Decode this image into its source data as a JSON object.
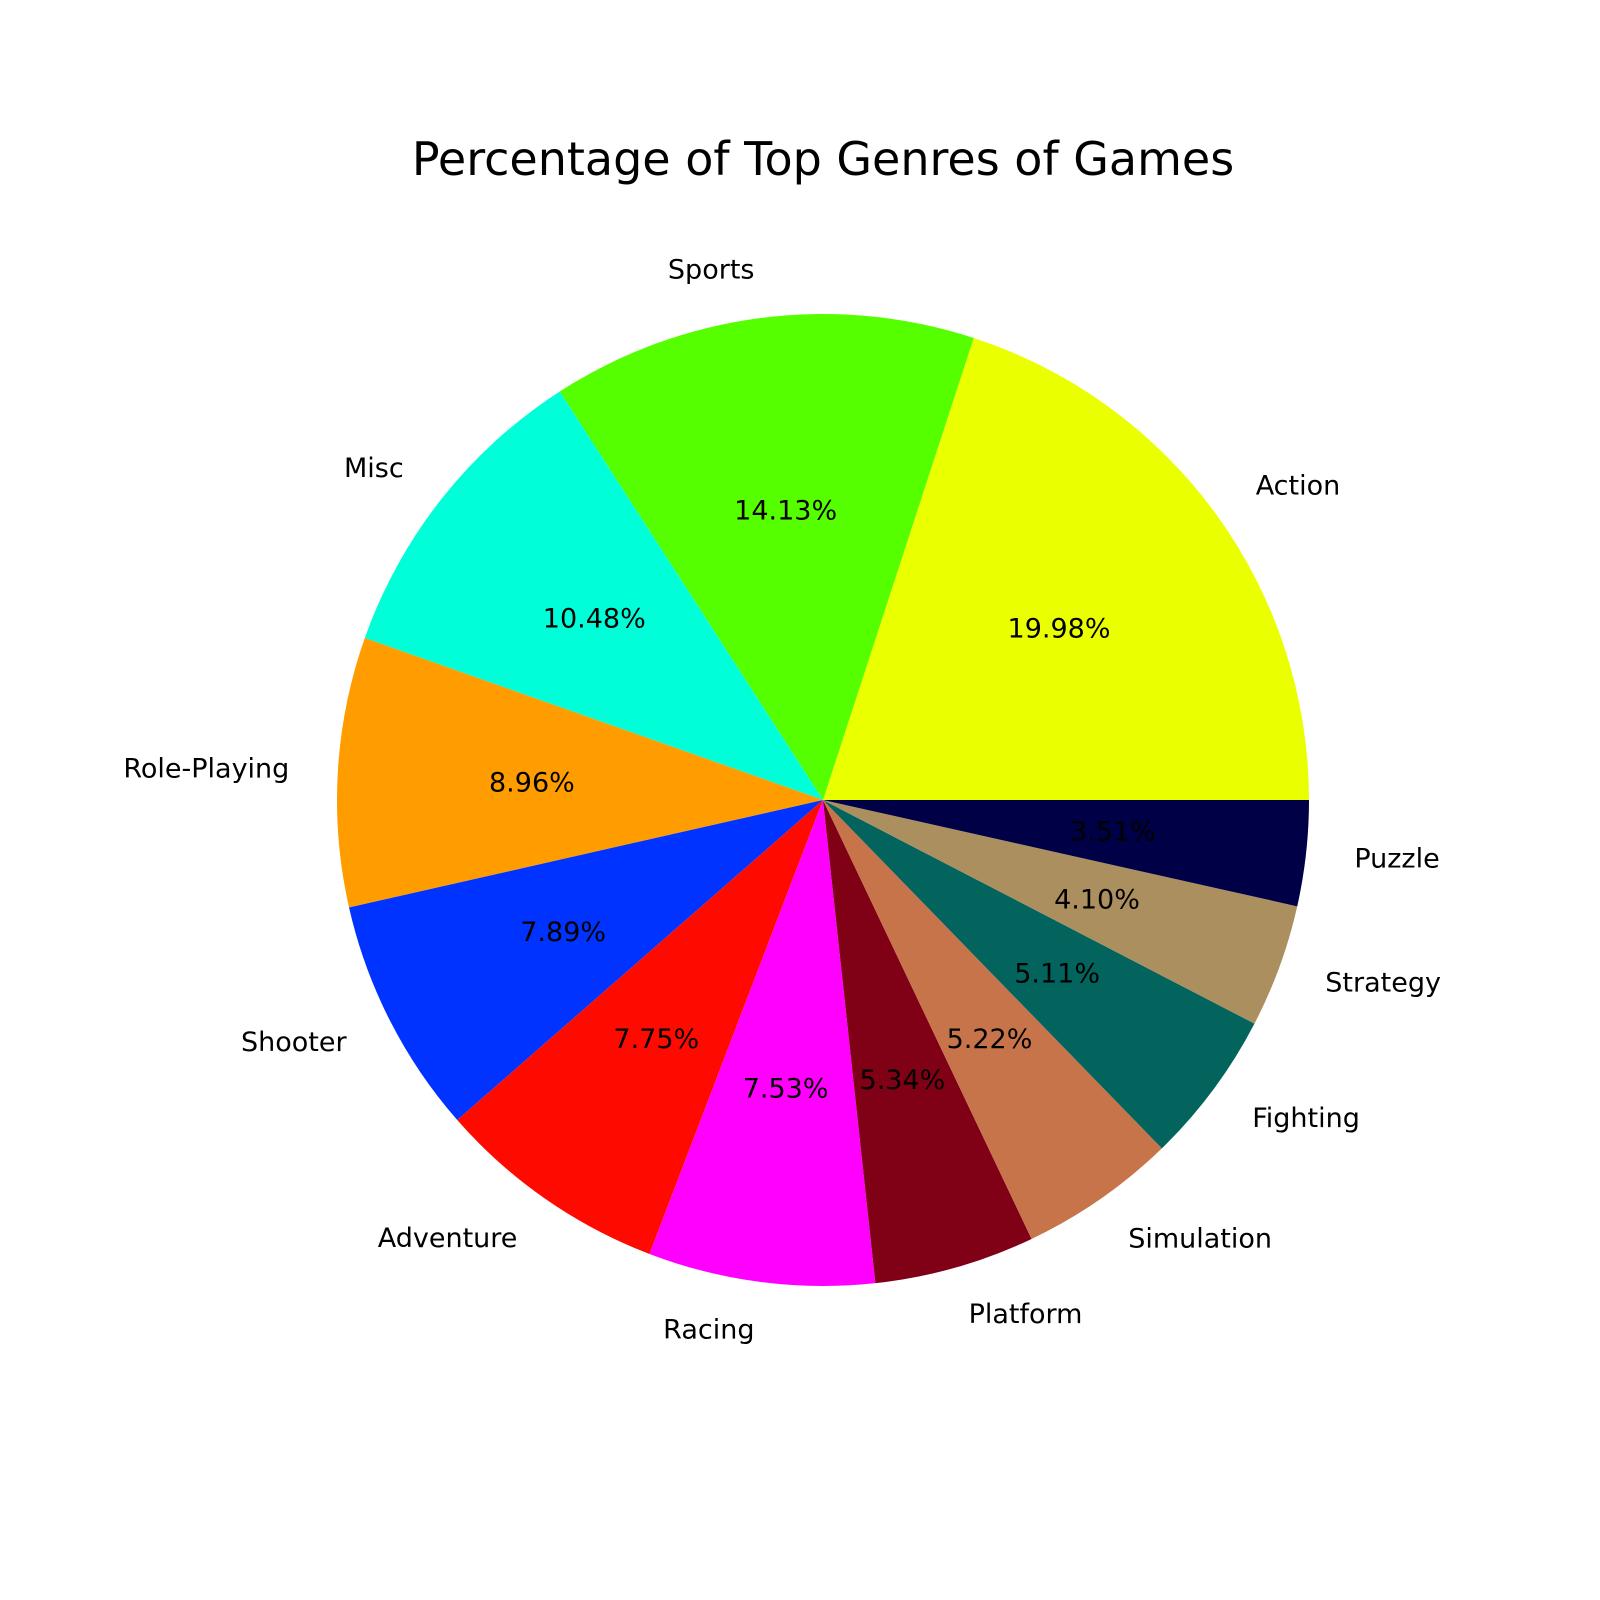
{
  "chart_data": {
    "type": "pie",
    "title": "Percentage of Top Genres of Games",
    "start_angle_deg": 0,
    "direction": "counterclockwise",
    "slices": [
      {
        "label": "Action",
        "value": 19.98,
        "pct_text": "19.98%",
        "color": "#eaff00"
      },
      {
        "label": "Sports",
        "value": 14.13,
        "pct_text": "14.13%",
        "color": "#55ff00"
      },
      {
        "label": "Misc",
        "value": 10.48,
        "pct_text": "10.48%",
        "color": "#00ffd9"
      },
      {
        "label": "Role-Playing",
        "value": 8.96,
        "pct_text": "8.96%",
        "color": "#ff9c00"
      },
      {
        "label": "Shooter",
        "value": 7.89,
        "pct_text": "7.89%",
        "color": "#0033ff"
      },
      {
        "label": "Adventure",
        "value": 7.75,
        "pct_text": "7.75%",
        "color": "#ff0a00"
      },
      {
        "label": "Racing",
        "value": 7.53,
        "pct_text": "7.53%",
        "color": "#ff00ff"
      },
      {
        "label": "Platform",
        "value": 5.34,
        "pct_text": "5.34%",
        "color": "#800016"
      },
      {
        "label": "Simulation",
        "value": 5.22,
        "pct_text": "5.22%",
        "color": "#c7744b"
      },
      {
        "label": "Fighting",
        "value": 5.11,
        "pct_text": "5.11%",
        "color": "#03635d"
      },
      {
        "label": "Strategy",
        "value": 4.1,
        "pct_text": "4.10%",
        "color": "#ac8f5f"
      },
      {
        "label": "Puzzle",
        "value": 3.51,
        "pct_text": "3.51%",
        "color": "#000047"
      }
    ]
  }
}
